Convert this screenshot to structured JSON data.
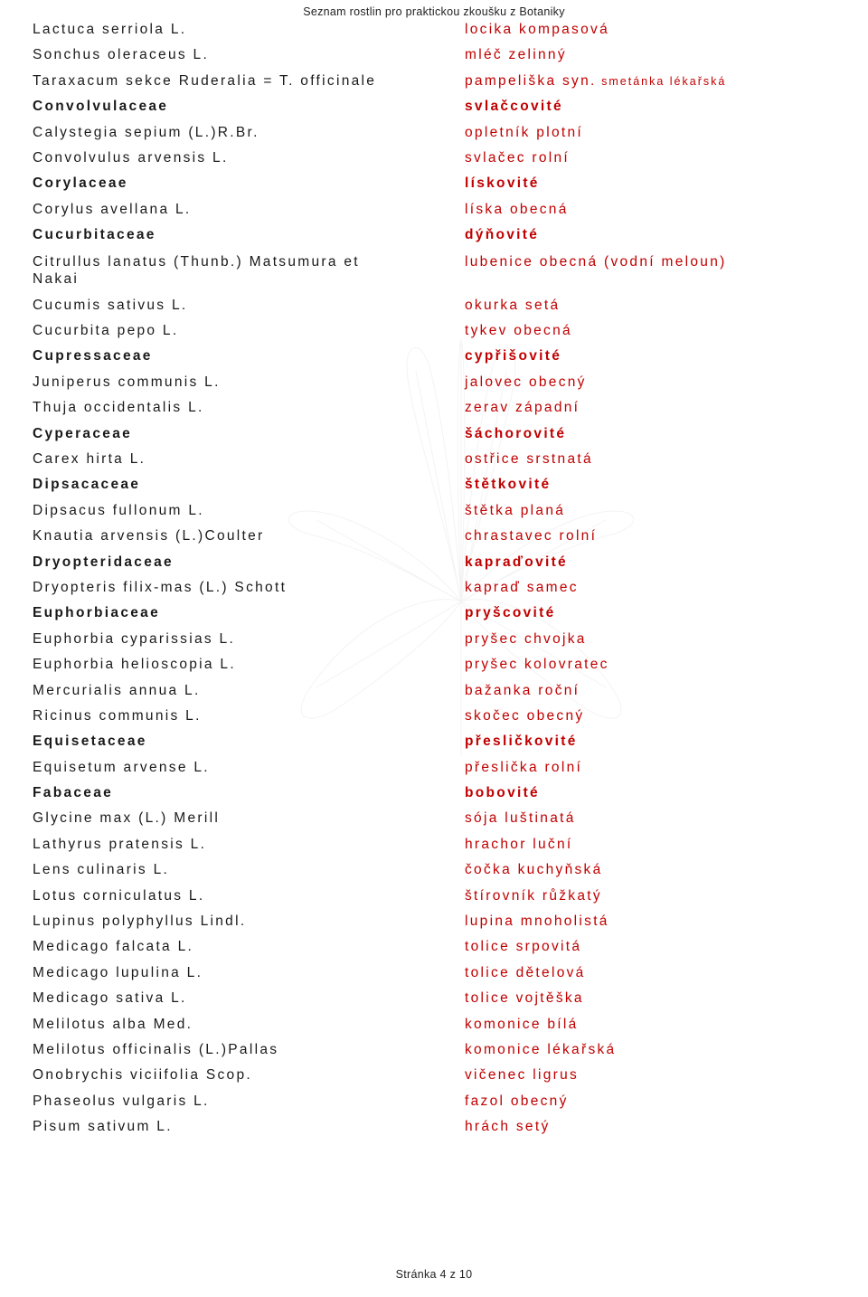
{
  "header": "Seznam rostlin pro praktickou zkoušku z Botaniky",
  "footer": "Stránka 4 z 10",
  "colors": {
    "latin": "#1a1a1a",
    "czech": "#c00000",
    "bg": "#ffffff"
  },
  "rows": [
    {
      "latin": "Lactuca serriola L.",
      "czech": "locika kompasová",
      "family": false
    },
    {
      "latin": "Sonchus oleraceus L.",
      "czech": "mléč zelinný",
      "family": false
    },
    {
      "latin": "Taraxacum sekce Ruderalia = T. officinale",
      "czech": "pampeliška syn.",
      "czech_syn": " smetánka lékařská",
      "family": false
    },
    {
      "latin": "Convolvulaceae",
      "czech": "svlačcovité",
      "family": true
    },
    {
      "latin": "Calystegia sepium (L.)R.Br.",
      "czech": "opletník plotní",
      "family": false
    },
    {
      "latin": "Convolvulus arvensis L.",
      "czech": "svlačec rolní",
      "family": false
    },
    {
      "latin": "Corylaceae",
      "czech": "lískovité",
      "family": true
    },
    {
      "latin": "Corylus avellana L.",
      "czech": "líska obecná",
      "family": false
    },
    {
      "latin": "Cucurbitaceae",
      "czech": "dýňovité",
      "family": true
    },
    {
      "latin": "Citrullus lanatus (Thunb.) Matsumura et Nakai",
      "czech": "lubenice obecná (vodní meloun)",
      "family": false,
      "multiline": true
    },
    {
      "latin": "Cucumis sativus L.",
      "czech": "okurka setá",
      "family": false
    },
    {
      "latin": "Cucurbita pepo L.",
      "czech": "tykev obecná",
      "family": false
    },
    {
      "latin": "Cupressaceae",
      "czech": "cypřišovité",
      "family": true
    },
    {
      "latin": "Juniperus communis L.",
      "czech": "jalovec obecný",
      "family": false
    },
    {
      "latin": "Thuja occidentalis L.",
      "czech": "zerav západní",
      "family": false
    },
    {
      "latin": "Cyperaceae",
      "czech": "šáchorovité",
      "family": true
    },
    {
      "latin": "Carex hirta L.",
      "czech": "ostřice srstnatá",
      "family": false
    },
    {
      "latin": "Dipsacaceae",
      "czech": "štětkovité",
      "family": true
    },
    {
      "latin": "Dipsacus fullonum L.",
      "czech": "štětka planá",
      "family": false
    },
    {
      "latin": "Knautia arvensis (L.)Coulter",
      "czech": "chrastavec rolní",
      "family": false
    },
    {
      "latin": "Dryopteridaceae",
      "czech": "kapraďovité",
      "family": true
    },
    {
      "latin": "Dryopteris filix-mas (L.) Schott",
      "czech": "kapraď samec",
      "family": false
    },
    {
      "latin": "Euphorbiaceae",
      "czech": "pryšcovité",
      "family": true
    },
    {
      "latin": "Euphorbia cyparissias L.",
      "czech": "pryšec chvojka",
      "family": false
    },
    {
      "latin": "Euphorbia helioscopia L.",
      "czech": "pryšec kolovratec",
      "family": false
    },
    {
      "latin": "Mercurialis annua L.",
      "czech": "bažanka roční",
      "family": false
    },
    {
      "latin": "Ricinus communis L.",
      "czech": "skočec obecný",
      "family": false
    },
    {
      "latin": "Equisetaceae",
      "czech": "přesličkovité",
      "family": true
    },
    {
      "latin": "Equisetum arvense L.",
      "czech": "přeslička rolní",
      "family": false
    },
    {
      "latin": "Fabaceae",
      "czech": "bobovité",
      "family": true
    },
    {
      "latin": "Glycine max (L.) Merill",
      "czech": "sója luštinatá",
      "family": false
    },
    {
      "latin": "Lathyrus pratensis L.",
      "czech": "hrachor luční",
      "family": false
    },
    {
      "latin": "Lens culinaris L.",
      "czech": "čočka kuchyňská",
      "family": false
    },
    {
      "latin": "Lotus corniculatus L.",
      "czech": "štírovník růžkatý",
      "family": false
    },
    {
      "latin": "Lupinus polyphyllus Lindl.",
      "czech": "lupina mnoholistá",
      "family": false
    },
    {
      "latin": "Medicago falcata L.",
      "czech": "tolice srpovitá",
      "family": false
    },
    {
      "latin": "Medicago lupulina L.",
      "czech": "tolice dětelová",
      "family": false
    },
    {
      "latin": "Medicago sativa L.",
      "czech": "tolice vojtěška",
      "family": false
    },
    {
      "latin": "Melilotus alba Med.",
      "czech": "komonice bílá",
      "family": false
    },
    {
      "latin": "Melilotus officinalis (L.)Pallas",
      "czech": "komonice lékařská",
      "family": false
    },
    {
      "latin": "Onobrychis viciifolia Scop.",
      "czech": "vičenec ligrus",
      "family": false
    },
    {
      "latin": "Phaseolus vulgaris L.",
      "czech": "fazol obecný",
      "family": false
    },
    {
      "latin": "Pisum sativum L.",
      "czech": "hrách setý",
      "family": false
    }
  ]
}
